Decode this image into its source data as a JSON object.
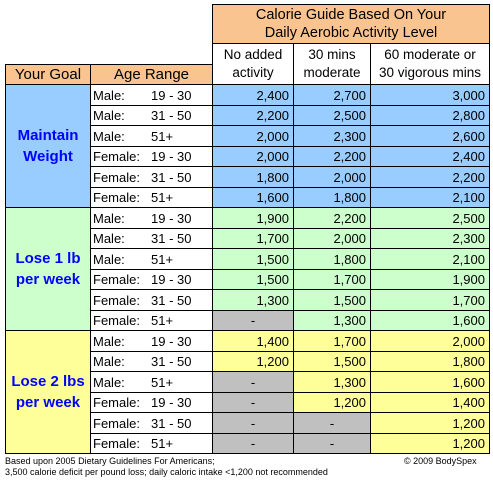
{
  "header": {
    "title_line1": "Calorie Guide Based On Your",
    "title_line2": "Daily Aerobic Activity Level",
    "your_goal": "Your Goal",
    "age_range": "Age Range",
    "columns": [
      {
        "line1": "No added",
        "line2": "activity"
      },
      {
        "line1": "30 mins",
        "line2": "moderate"
      },
      {
        "line1": "60 moderate or",
        "line2": "30 vigorous mins"
      }
    ]
  },
  "goals": [
    {
      "line1": "Maintain",
      "line2": "Weight",
      "color": "#99ccff"
    },
    {
      "line1": "Lose 1 lb",
      "line2": "per week",
      "color": "#ccffcc"
    },
    {
      "line1": "Lose 2 lbs",
      "line2": "per week",
      "color": "#ffff99"
    }
  ],
  "rows": [
    {
      "sex": "Male:",
      "range": "19 - 30",
      "vals": [
        "2,400",
        "2,700",
        "3,000"
      ],
      "fills": [
        "blue",
        "blue",
        "blue"
      ]
    },
    {
      "sex": "Male:",
      "range": "31 - 50",
      "vals": [
        "2,200",
        "2,500",
        "2,800"
      ],
      "fills": [
        "blue",
        "blue",
        "blue"
      ]
    },
    {
      "sex": "Male:",
      "range": "51+",
      "vals": [
        "2,000",
        "2,300",
        "2,600"
      ],
      "fills": [
        "blue",
        "blue",
        "blue"
      ]
    },
    {
      "sex": "Female:",
      "range": "19 - 30",
      "vals": [
        "2,000",
        "2,200",
        "2,400"
      ],
      "fills": [
        "blue",
        "blue",
        "blue"
      ]
    },
    {
      "sex": "Female:",
      "range": "31 - 50",
      "vals": [
        "1,800",
        "2,000",
        "2,200"
      ],
      "fills": [
        "blue",
        "blue",
        "blue"
      ]
    },
    {
      "sex": "Female:",
      "range": "51+",
      "vals": [
        "1,600",
        "1,800",
        "2,100"
      ],
      "fills": [
        "blue",
        "blue",
        "blue"
      ]
    },
    {
      "sex": "Male:",
      "range": "19 - 30",
      "vals": [
        "1,900",
        "2,200",
        "2,500"
      ],
      "fills": [
        "green",
        "green",
        "green"
      ]
    },
    {
      "sex": "Male:",
      "range": "31 - 50",
      "vals": [
        "1,700",
        "2,000",
        "2,300"
      ],
      "fills": [
        "green",
        "green",
        "green"
      ]
    },
    {
      "sex": "Male:",
      "range": "51+",
      "vals": [
        "1,500",
        "1,800",
        "2,100"
      ],
      "fills": [
        "green",
        "green",
        "green"
      ]
    },
    {
      "sex": "Female:",
      "range": "19 - 30",
      "vals": [
        "1,500",
        "1,700",
        "1,900"
      ],
      "fills": [
        "green",
        "green",
        "green"
      ]
    },
    {
      "sex": "Female:",
      "range": "31 - 50",
      "vals": [
        "1,300",
        "1,500",
        "1,700"
      ],
      "fills": [
        "green",
        "green",
        "green"
      ]
    },
    {
      "sex": "Female:",
      "range": "51+",
      "vals": [
        "-",
        "1,300",
        "1,600"
      ],
      "fills": [
        "gray",
        "green",
        "green"
      ]
    },
    {
      "sex": "Male:",
      "range": "19 - 30",
      "vals": [
        "1,400",
        "1,700",
        "2,000"
      ],
      "fills": [
        "yellow",
        "yellow",
        "yellow"
      ]
    },
    {
      "sex": "Male:",
      "range": "31 - 50",
      "vals": [
        "1,200",
        "1,500",
        "1,800"
      ],
      "fills": [
        "yellow",
        "yellow",
        "yellow"
      ]
    },
    {
      "sex": "Male:",
      "range": "51+",
      "vals": [
        "-",
        "1,300",
        "1,600"
      ],
      "fills": [
        "gray",
        "yellow",
        "yellow"
      ]
    },
    {
      "sex": "Female:",
      "range": "19 - 30",
      "vals": [
        "-",
        "1,200",
        "1,400"
      ],
      "fills": [
        "gray",
        "yellow",
        "yellow"
      ]
    },
    {
      "sex": "Female:",
      "range": "31 - 50",
      "vals": [
        "-",
        "-",
        "1,200"
      ],
      "fills": [
        "gray",
        "gray",
        "yellow"
      ]
    },
    {
      "sex": "Female:",
      "range": "51+",
      "vals": [
        "-",
        "-",
        "1,200"
      ],
      "fills": [
        "gray",
        "gray",
        "yellow"
      ]
    }
  ],
  "footer": {
    "note_line1": "Based upon 2005 Dietary Guidelines For Americans;",
    "note_line2": "3,500 calorie deficit per pound loss; daily caloric intake <1,200 not recommended",
    "copyright": "© 2009 BodySpex"
  },
  "colors": {
    "header_orange": "#f9c48f",
    "blue": "#99ccff",
    "green": "#ccffcc",
    "yellow": "#ffff99",
    "gray": "#c0c0c0",
    "goal_text": "#0000ff"
  }
}
